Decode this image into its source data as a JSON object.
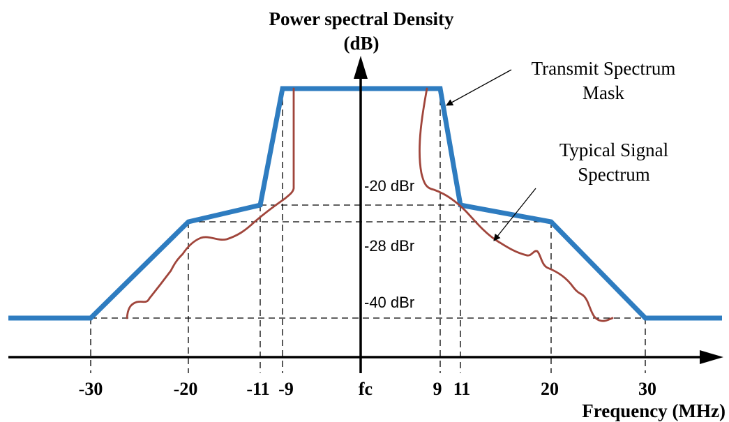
{
  "y_axis_title_line1": "Power spectral Density",
  "y_axis_title_line2": "(dB)",
  "x_axis_title": "Frequency (MHz)",
  "x_tick_labels": [
    "-30",
    "-20",
    "-11",
    "-9",
    "fc",
    "9",
    "11",
    "20",
    "30"
  ],
  "level_labels": [
    "-20 dBr",
    "-28 dBr",
    "-40 dBr"
  ],
  "annotations": {
    "mask_line1": "Transmit Spectrum",
    "mask_line2": "Mask",
    "signal_line1": "Typical Signal",
    "signal_line2": "Spectrum"
  },
  "colors": {
    "mask": "#2e7cc0",
    "signal": "#a0453b",
    "axes": "#000000"
  }
}
